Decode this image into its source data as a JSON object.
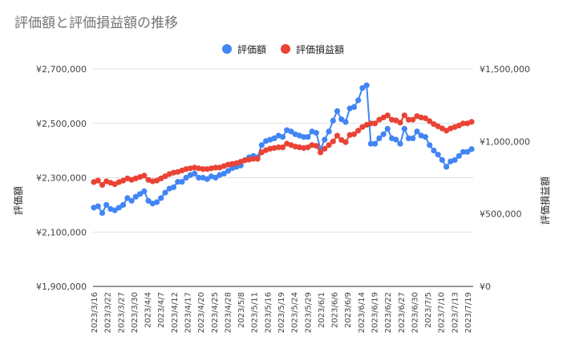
{
  "chart_data": {
    "type": "line",
    "title": "評価額と評価損益額の推移",
    "legend_position": "top",
    "grid": true,
    "y_left": {
      "label": "評価額",
      "range": [
        1900000,
        2700000
      ],
      "ticks": [
        "¥1,900,000",
        "¥2,100,000",
        "¥2,300,000",
        "¥2,500,000",
        "¥2,700,000"
      ],
      "tick_values": [
        1900000,
        2100000,
        2300000,
        2500000,
        2700000
      ]
    },
    "y_right": {
      "label": "評価損益額",
      "range": [
        0,
        1500000
      ],
      "ticks": [
        "¥0",
        "¥500,000",
        "¥1,000,000",
        "¥1,500,000"
      ],
      "tick_values": [
        0,
        500000,
        1000000,
        1500000
      ]
    },
    "x_tick_labels": [
      "2023/3/16",
      "2023/3/22",
      "2023/3/27",
      "2023/3/30",
      "2023/4/4",
      "2023/4/7",
      "2023/4/12",
      "2023/4/17",
      "2023/4/20",
      "2023/4/25",
      "2023/4/28",
      "2023/5/8",
      "2023/5/11",
      "2023/5/16",
      "2023/5/19",
      "2023/5/24",
      "2023/5/29",
      "2023/6/1",
      "2023/6/6",
      "2023/6/9",
      "2023/6/14",
      "2023/6/19",
      "2023/6/22",
      "2023/6/27",
      "2023/6/30",
      "2023/7/5",
      "2023/7/10",
      "2023/7/13",
      "2023/7/19"
    ],
    "series": [
      {
        "name": "評価額",
        "axis": "left",
        "color": "#4285f4",
        "values": [
          2190000,
          2195000,
          2170000,
          2200000,
          2185000,
          2180000,
          2190000,
          2200000,
          2225000,
          2215000,
          2230000,
          2240000,
          2250000,
          2215000,
          2205000,
          2210000,
          2225000,
          2245000,
          2260000,
          2265000,
          2285000,
          2285000,
          2300000,
          2310000,
          2315000,
          2300000,
          2300000,
          2295000,
          2305000,
          2300000,
          2310000,
          2315000,
          2325000,
          2335000,
          2340000,
          2345000,
          2365000,
          2375000,
          2380000,
          2375000,
          2420000,
          2435000,
          2440000,
          2445000,
          2455000,
          2450000,
          2475000,
          2470000,
          2460000,
          2455000,
          2450000,
          2450000,
          2470000,
          2465000,
          2405000,
          2440000,
          2470000,
          2510000,
          2545000,
          2515000,
          2505000,
          2555000,
          2560000,
          2585000,
          2630000,
          2640000,
          2425000,
          2425000,
          2445000,
          2460000,
          2480000,
          2445000,
          2440000,
          2425000,
          2480000,
          2445000,
          2445000,
          2470000,
          2455000,
          2450000,
          2420000,
          2400000,
          2385000,
          2365000,
          2340000,
          2360000,
          2365000,
          2380000,
          2395000,
          2395000,
          2405000
        ]
      },
      {
        "name": "評価損益額",
        "axis": "right",
        "color": "#ea4335",
        "values": [
          720000,
          730000,
          700000,
          725000,
          715000,
          705000,
          720000,
          730000,
          745000,
          735000,
          745000,
          755000,
          765000,
          735000,
          725000,
          730000,
          745000,
          760000,
          775000,
          785000,
          790000,
          800000,
          810000,
          815000,
          820000,
          815000,
          810000,
          810000,
          815000,
          820000,
          820000,
          830000,
          840000,
          845000,
          850000,
          860000,
          870000,
          875000,
          880000,
          880000,
          925000,
          940000,
          950000,
          955000,
          960000,
          960000,
          985000,
          975000,
          965000,
          960000,
          955000,
          960000,
          975000,
          970000,
          925000,
          950000,
          975000,
          1000000,
          1040000,
          1010000,
          995000,
          1045000,
          1050000,
          1075000,
          1100000,
          1115000,
          1125000,
          1125000,
          1150000,
          1165000,
          1180000,
          1150000,
          1145000,
          1130000,
          1180000,
          1150000,
          1150000,
          1175000,
          1165000,
          1160000,
          1140000,
          1120000,
          1105000,
          1090000,
          1075000,
          1090000,
          1100000,
          1110000,
          1125000,
          1125000,
          1135000
        ]
      }
    ]
  }
}
